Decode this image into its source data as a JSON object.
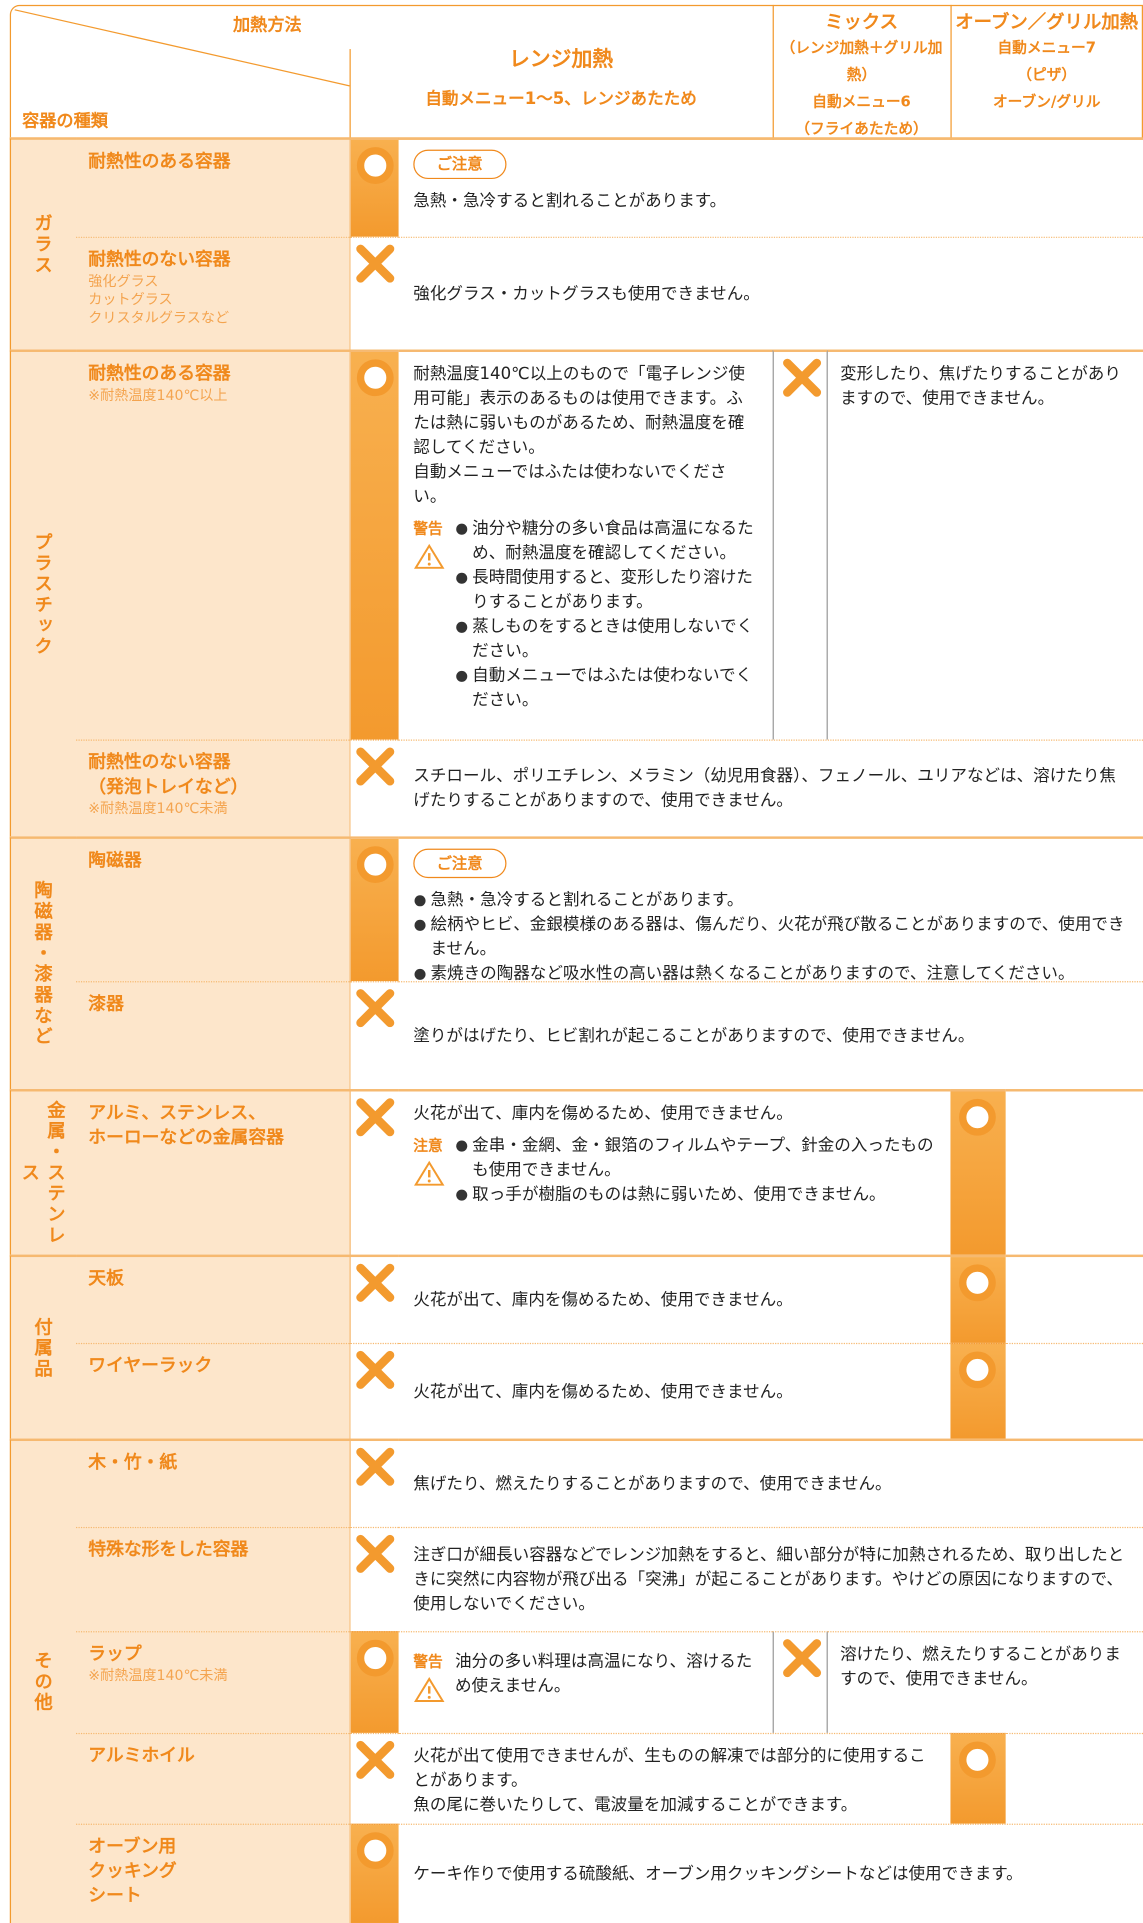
{
  "header": {
    "method": "加熱方法",
    "container_type": "容器の種類",
    "range": {
      "title": "レンジ加熱",
      "subtitle": "自動メニュー1〜5、レンジあたため"
    },
    "mix": {
      "title": "ミックス",
      "lines": [
        "（レンジ加熱＋グリル加熱）",
        "自動メニュー6",
        "（フライあたため）"
      ]
    },
    "oven": {
      "title": "オーブン／グリル加熱",
      "lines": [
        "自動メニュー7",
        "（ピザ）",
        "オーブン/グリル"
      ]
    }
  },
  "groups": [
    {
      "label": "ガラス",
      "items": [
        {
          "name": "耐熱性のある容器",
          "caution": "ご注意",
          "text": "急熱・急冷すると割れることがあります。"
        },
        {
          "name": "耐熱性のない容器",
          "notes": [
            "強化グラス",
            "カットグラス",
            "クリスタルグラスなど"
          ],
          "text": "強化グラス・カットグラスも使用できません。"
        }
      ]
    },
    {
      "label": "プラスチック",
      "items": [
        {
          "name": "耐熱性のある容器",
          "notes": [
            "※耐熱温度140℃以上"
          ],
          "text": "耐熱温度140℃以上のもので「電子レンジ使用可能」表示のあるものは使用できます。ふたは熱に弱いものがあるため、耐熱温度を確認してください。",
          "text2": "自動メニューではふたは使わないでください。",
          "warning": {
            "label": "警告",
            "items": [
              "油分や糖分の多い食品は高温になるため、耐熱温度を確認してください。",
              "長時間使用すると、変形したり溶けたりすることがあります。",
              "蒸しものをするときは使用しないでください。",
              "自動メニューではふたは使わないでください。"
            ]
          },
          "other_text": "変形したり、焦げたりすることがありますので、使用できません。"
        },
        {
          "name": "耐熱性のない容器",
          "name2": "（発泡トレイなど）",
          "notes": [
            "※耐熱温度140℃未満"
          ],
          "text": "スチロール、ポリエチレン、メラミン（幼児用食器）、フェノール、ユリアなどは、溶けたり焦げたりすることがありますので、使用できません。"
        }
      ]
    },
    {
      "label": "陶磁器・漆器など",
      "items": [
        {
          "name": "陶磁器",
          "caution": "ご注意",
          "bullets": [
            "急熱・急冷すると割れることがあります。",
            "絵柄やヒビ、金銀模様のある器は、傷んだり、火花が飛び散ることがありますので、使用できません。",
            "素焼きの陶器など吸水性の高い器は熱くなることがありますので、注意してください。"
          ]
        },
        {
          "name": "漆器",
          "text": "塗りがはげたり、ヒビ割れが起こることがありますので、使用できません。"
        }
      ]
    },
    {
      "label": "金属・ステンレス",
      "items": [
        {
          "name": "アルミ、ステンレス、",
          "name2": "ホーローなどの金属容器",
          "text": "火花が出て、庫内を傷めるため、使用できません。",
          "warning": {
            "label": "注意",
            "items": [
              "金串・金網、金・銀箔のフィルムやテープ、針金の入ったものも使用できません。",
              "取っ手が樹脂のものは熱に弱いため、使用できません。"
            ]
          }
        }
      ]
    },
    {
      "label": "付属品",
      "items": [
        {
          "name": "天板",
          "text": "火花が出て、庫内を傷めるため、使用できません。"
        },
        {
          "name": "ワイヤーラック",
          "text": "火花が出て、庫内を傷めるため、使用できません。"
        }
      ]
    },
    {
      "label": "その他",
      "items": [
        {
          "name": "木・竹・紙",
          "text": "焦げたり、燃えたりすることがありますので、使用できません。"
        },
        {
          "name": "特殊な形をした容器",
          "text": "注ぎ口が細長い容器などでレンジ加熱をすると、細い部分が特に加熱されるため、取り出したときに突然に内容物が飛び出る「突沸」が起こることがあります。やけどの原因になりますので、使用しないでください。"
        },
        {
          "name": "ラップ",
          "notes": [
            "※耐熱温度140℃未満"
          ],
          "warning": {
            "label": "警告",
            "text": "油分の多い料理は高温になり、溶けるため使えません。"
          },
          "other_text": "溶けたり、燃えたりすることがありますので、使用できません。"
        },
        {
          "name": "アルミホイル",
          "text": "火花が出て使用できませんが、生ものの解凍では部分的に使用することがあります。",
          "text2": "魚の尾に巻いたりして、電波量を加減することができます。"
        },
        {
          "name": "オーブン用",
          "name2": "クッキング",
          "name3": "シート",
          "text": "ケーキ作りで使用する硫酸紙、オーブン用クッキングシートなどは使用できます。"
        }
      ]
    }
  ]
}
